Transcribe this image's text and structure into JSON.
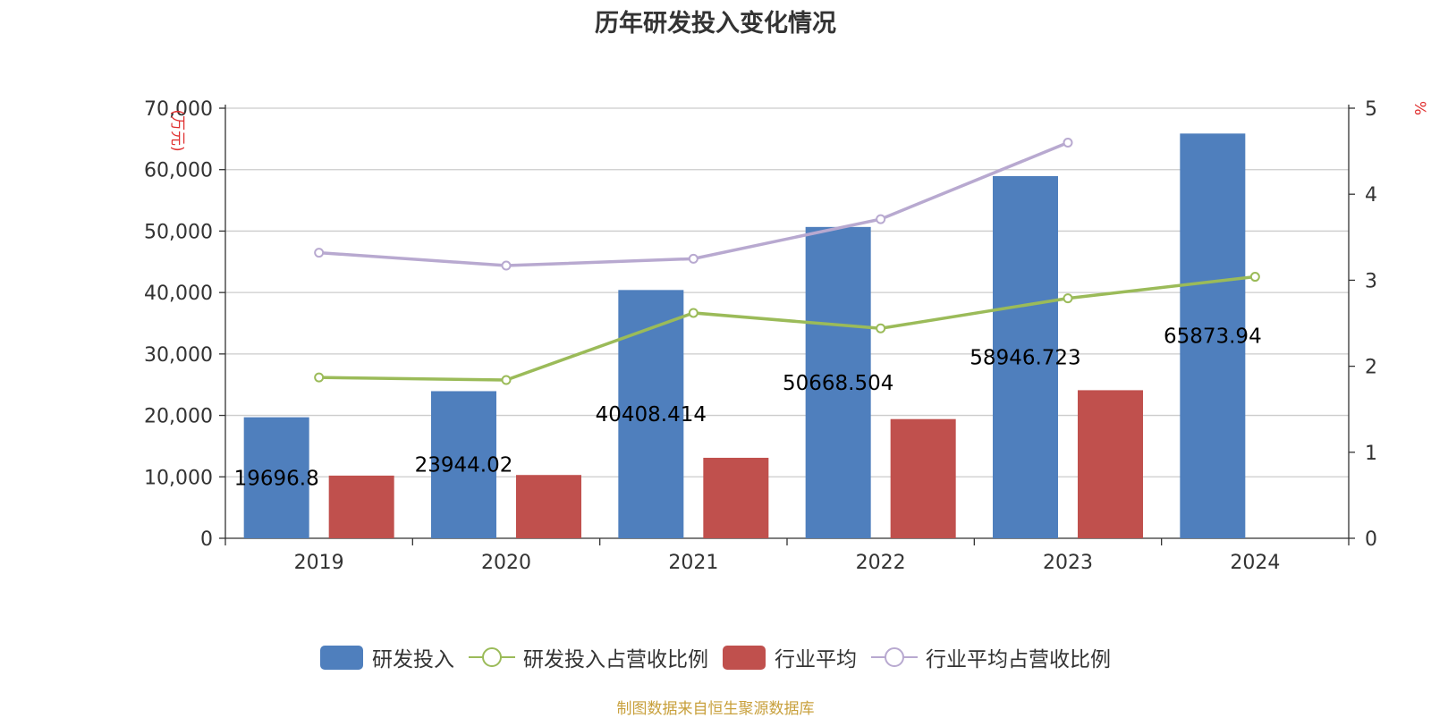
{
  "chart_data": {
    "type": "bar",
    "title": "历年研发投入变化情况",
    "categories": [
      "2019",
      "2020",
      "2021",
      "2022",
      "2023",
      "2024"
    ],
    "y_left": {
      "unit_label": "万元",
      "range": [
        0,
        70000
      ],
      "ticks": [
        "0",
        "10,000",
        "20,000",
        "30,000",
        "40,000",
        "50,000",
        "60,000",
        "70,000"
      ]
    },
    "y_right": {
      "unit_label": "%",
      "range": [
        0,
        5
      ],
      "ticks": [
        "0",
        "1",
        "2",
        "3",
        "4",
        "5"
      ]
    },
    "grid": true,
    "legend_position": "bottom-center",
    "series": [
      {
        "name": "研发投入",
        "type": "bar",
        "axis": "left",
        "color": "#4f7fbd",
        "values": [
          19696.8,
          23944.02,
          40408.414,
          50668.504,
          58946.723,
          65873.94
        ],
        "labels": [
          "19696.8",
          "23944.02",
          "40408.414",
          "50668.504",
          "58946.723",
          "65873.94"
        ]
      },
      {
        "name": "研发投入占营收比例",
        "type": "line",
        "axis": "right",
        "color": "#9bbb59",
        "values": [
          1.87,
          1.84,
          2.62,
          2.44,
          2.79,
          3.04
        ]
      },
      {
        "name": "行业平均",
        "type": "bar",
        "axis": "left",
        "color": "#c0504d",
        "values": [
          10200,
          10300,
          13100,
          19400,
          24100,
          null
        ]
      },
      {
        "name": "行业平均占营收比例",
        "type": "line",
        "axis": "right",
        "color": "#b8a9d0",
        "values": [
          3.32,
          3.17,
          3.25,
          3.71,
          4.6,
          null
        ]
      }
    ]
  },
  "source_text": "制图数据来自恒生聚源数据库"
}
